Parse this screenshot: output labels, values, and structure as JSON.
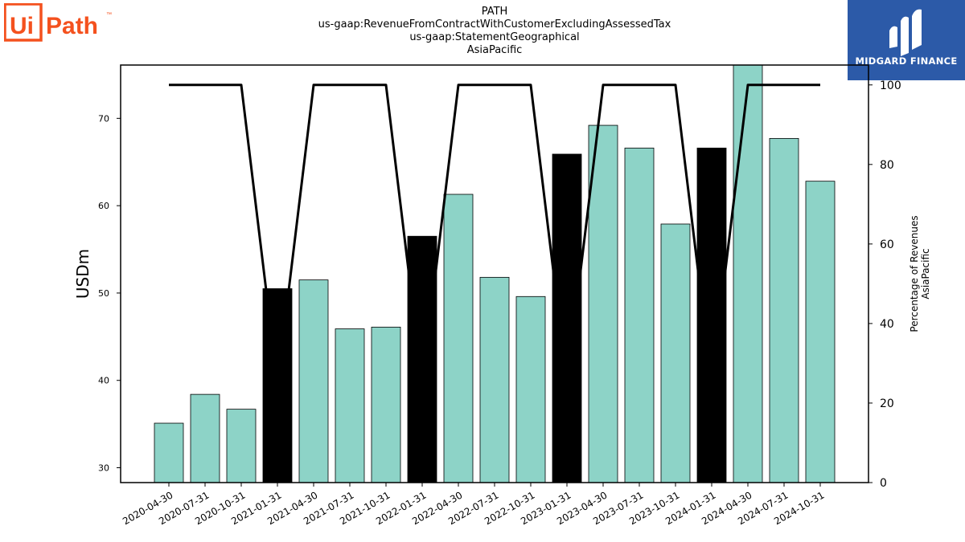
{
  "logos": {
    "left_text": "UiPath",
    "left_color": "#f4511e",
    "right_text": "MIDGARD FINANCE",
    "right_bg": "#2c5aa8"
  },
  "titles": [
    "PATH",
    "us-gaap:RevenueFromContractWithCustomerExcludingAssessedTax",
    "us-gaap:StatementGeographical",
    "AsiaPacific"
  ],
  "chart_data": {
    "type": "bar",
    "categories": [
      "2020-04-30",
      "2020-07-31",
      "2020-10-31",
      "2021-01-31",
      "2021-04-30",
      "2021-07-31",
      "2021-10-31",
      "2022-01-31",
      "2022-04-30",
      "2022-07-31",
      "2022-10-31",
      "2023-01-31",
      "2023-04-30",
      "2023-07-31",
      "2023-10-31",
      "2024-01-31",
      "2024-04-30",
      "2024-07-31",
      "2024-10-31"
    ],
    "values": [
      35.1,
      38.4,
      36.7,
      50.5,
      51.5,
      45.9,
      46.1,
      56.5,
      61.3,
      51.8,
      49.6,
      65.9,
      69.2,
      66.6,
      57.9,
      66.6,
      76.5,
      67.7,
      62.8
    ],
    "highlight": [
      false,
      false,
      false,
      true,
      false,
      false,
      false,
      true,
      false,
      false,
      false,
      true,
      false,
      false,
      false,
      true,
      false,
      false,
      false
    ],
    "bar_color": "#8dd3c7",
    "highlight_color": "#000000",
    "ylabel": "USDm",
    "ylim": [
      28.3,
      76.1
    ],
    "yticks": [
      30,
      40,
      50,
      60,
      70
    ],
    "secondary": {
      "type": "line",
      "values": [
        100,
        100,
        100,
        25,
        100,
        100,
        100,
        25,
        100,
        100,
        100,
        25,
        100,
        100,
        100,
        25,
        100,
        100,
        100
      ],
      "ylabel_lines": [
        "Percentage of Revenues",
        "AsiaPacific"
      ],
      "ylim": [
        0,
        105
      ],
      "yticks": [
        0,
        20,
        40,
        60,
        80,
        100
      ],
      "color": "#000000"
    }
  }
}
